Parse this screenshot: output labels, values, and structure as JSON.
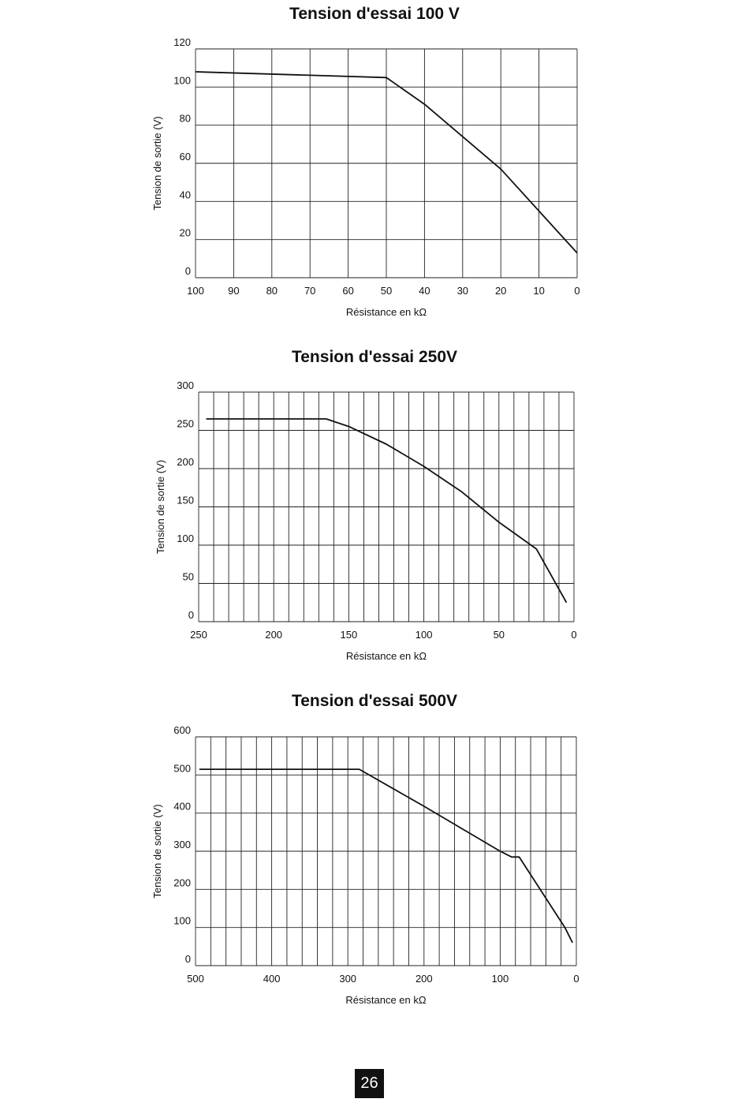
{
  "chart_data": [
    {
      "type": "line",
      "title": "Tension d'essai 100 V",
      "xlabel": "Résistance en kΩ",
      "ylabel": "Tension de sortie (V)",
      "xlim": [
        100,
        0
      ],
      "ylim": [
        0,
        120
      ],
      "x_ticks": [
        "100",
        "90",
        "80",
        "70",
        "60",
        "50",
        "40",
        "30",
        "20",
        "10",
        "0"
      ],
      "y_ticks": [
        "0",
        "20",
        "40",
        "60",
        "80",
        "100",
        "120"
      ],
      "grid": true,
      "x": [
        100,
        50,
        40,
        20,
        0
      ],
      "values": [
        108,
        105,
        91,
        57,
        13
      ]
    },
    {
      "type": "line",
      "title": "Tension d'essai 250V",
      "xlabel": "Résistance en kΩ",
      "ylabel": "Tension de sortie (V)",
      "xlim": [
        250,
        0
      ],
      "ylim": [
        0,
        300
      ],
      "x_ticks": [
        "250",
        "200",
        "150",
        "100",
        "50",
        "0"
      ],
      "y_ticks": [
        "0",
        "50",
        "100",
        "150",
        "200",
        "250",
        "300"
      ],
      "grid": true,
      "x": [
        245,
        165,
        150,
        125,
        100,
        75,
        50,
        25,
        5
      ],
      "values": [
        265,
        265,
        255,
        232,
        203,
        170,
        130,
        95,
        25
      ]
    },
    {
      "type": "line",
      "title": "Tension d'essai 500V",
      "xlabel": "Résistance en kΩ",
      "ylabel": "Tension de sortie (V)",
      "xlim": [
        500,
        0
      ],
      "ylim": [
        0,
        600
      ],
      "x_ticks": [
        "500",
        "400",
        "300",
        "200",
        "100",
        "0"
      ],
      "y_ticks": [
        "0",
        "100",
        "200",
        "300",
        "400",
        "500",
        "600"
      ],
      "grid": true,
      "x": [
        495,
        285,
        200,
        100,
        85,
        75,
        15,
        5
      ],
      "values": [
        515,
        515,
        418,
        300,
        285,
        285,
        100,
        60
      ]
    }
  ],
  "page": {
    "number": "26"
  }
}
